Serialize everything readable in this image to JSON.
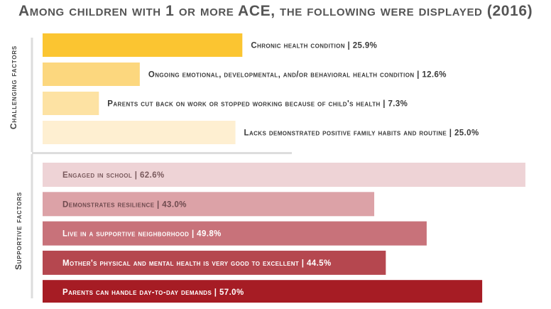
{
  "chart_data": {
    "type": "bar",
    "orientation": "horizontal",
    "title": "Among children with 1 or more ACE, the following were displayed (2016)",
    "value_unit": "%",
    "xlim": [
      0,
      65
    ],
    "grid": false,
    "groups": [
      {
        "name": "Challenging factors",
        "categories": [
          "Chronic health condition",
          "Ongoing emotional, developmental, and/or behavioral health condition",
          "Parents cut back on work or stopped working because of child's health",
          "Lacks demonstrated positive family habits and routine"
        ],
        "values": [
          25.9,
          12.6,
          7.3,
          25.0
        ],
        "labels": [
          "Chronic health condition | 25.9%",
          "Ongoing emotional, developmental, and/or behavioral health condition | 12.6%",
          "Parents cut back on work or stopped working because of child's health | 7.3%",
          "Lacks demonstrated positive family habits and routine | 25.0%"
        ],
        "colors": [
          "#FBC531",
          "#FCD77E",
          "#FDE2A3",
          "#FEEFD1"
        ]
      },
      {
        "name": "Supportive factors",
        "categories": [
          "Engaged in school",
          "Demonstrates resilience",
          "Live in a supportive neighborhood",
          "Mother's physical and mental health is very good to excellent",
          "Parents can handle day-to-day demands"
        ],
        "values": [
          62.6,
          43.0,
          49.8,
          44.5,
          57.0
        ],
        "labels": [
          "Engaged in school | 62.6%",
          "Demonstrates resilience | 43.0%",
          "Live in a supportive neighborhood | 49.8%",
          "Mother's physical and mental health is very good to excellent | 44.5%",
          "Parents can handle day-to-day demands | 57.0%"
        ],
        "colors": [
          "#EED3D6",
          "#DCA2A7",
          "#C8727A",
          "#B5474F",
          "#A61C24"
        ],
        "label_colors": [
          "#7A5A5D",
          "#6E4A4E",
          "#ffffff",
          "#ffffff",
          "#ffffff"
        ]
      }
    ]
  }
}
